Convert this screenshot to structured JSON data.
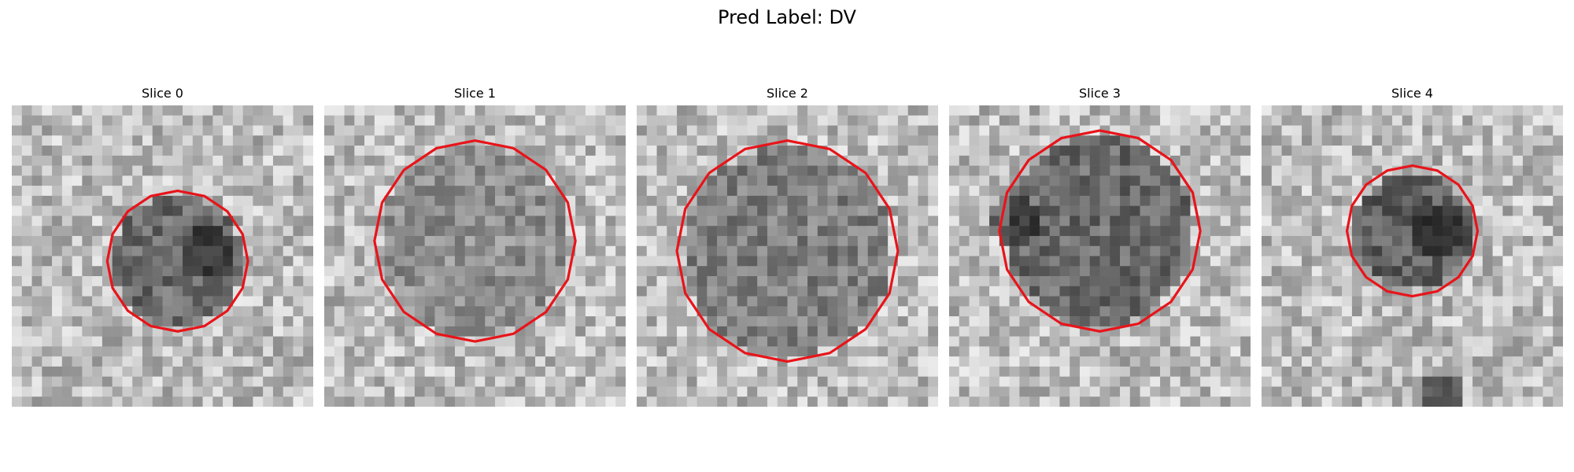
{
  "figure": {
    "suptitle": "Pred Label: DV",
    "panels": [
      {
        "title": "Slice 0"
      },
      {
        "title": "Slice 1"
      },
      {
        "title": "Slice 2"
      },
      {
        "title": "Slice 3"
      },
      {
        "title": "Slice 4"
      }
    ],
    "contour_color": "#e8141a"
  }
}
